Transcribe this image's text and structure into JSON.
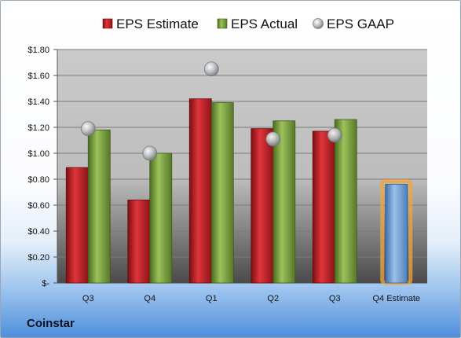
{
  "company": "Coinstar",
  "legend": [
    {
      "name": "EPS Estimate",
      "color": "#c0272d",
      "shape": "square"
    },
    {
      "name": "EPS Actual",
      "color": "#77a33c",
      "shape": "square"
    },
    {
      "name": "EPS GAAP",
      "color": "#b0b4b8",
      "shape": "circle"
    }
  ],
  "chart_data": {
    "type": "bar",
    "categories": [
      "Q3",
      "Q4",
      "Q1",
      "Q2",
      "Q3",
      "Q4 Estimate"
    ],
    "ylim": [
      0,
      1.8
    ],
    "y_ticks": [
      0,
      0.2,
      0.4,
      0.6,
      0.8,
      1.0,
      1.2,
      1.4,
      1.6,
      1.8
    ],
    "y_tick_labels": [
      "$-",
      "$0.20",
      "$0.40",
      "$0.60",
      "$0.80",
      "$1.00",
      "$1.20",
      "$1.40",
      "$1.60",
      "$1.80"
    ],
    "grid": true,
    "legend_position": "top",
    "series": [
      {
        "name": "EPS Estimate",
        "type": "bar",
        "color": "#c0272d",
        "values": [
          0.89,
          0.64,
          1.42,
          1.19,
          1.17,
          null
        ]
      },
      {
        "name": "EPS Actual",
        "type": "bar",
        "color": "#77a33c",
        "values": [
          1.18,
          1.0,
          1.39,
          1.25,
          1.26,
          null
        ]
      },
      {
        "name": "EPS GAAP",
        "type": "scatter",
        "color": "#b0b4b8",
        "values": [
          1.19,
          1.0,
          1.65,
          1.11,
          1.14,
          null
        ]
      },
      {
        "name": "Q4 Estimate",
        "type": "bar",
        "color": "#6c9fd6",
        "highlight": "#f4a53a",
        "values": [
          null,
          null,
          null,
          null,
          null,
          0.76
        ]
      }
    ]
  }
}
